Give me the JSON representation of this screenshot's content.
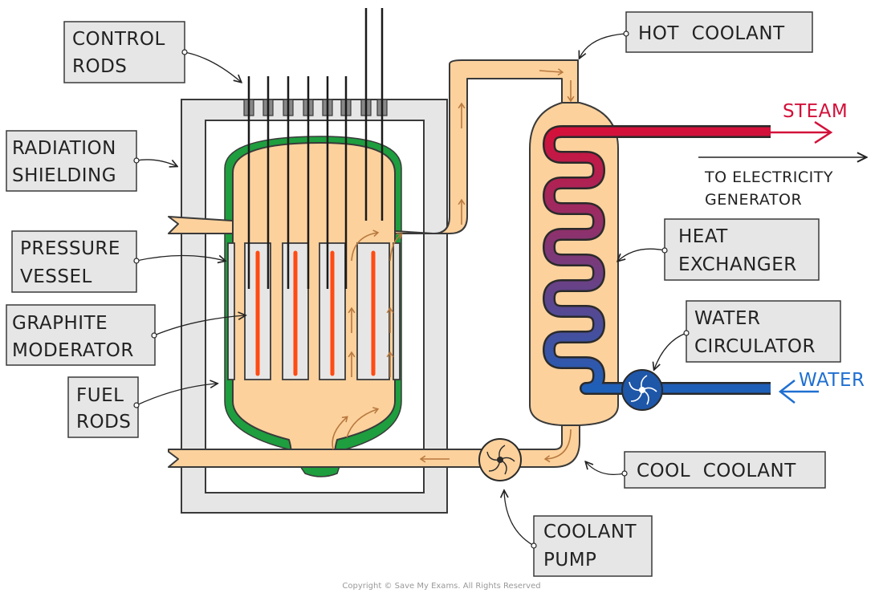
{
  "labels": {
    "control_rods": [
      "CONTROL",
      "RODS"
    ],
    "radiation_shielding": [
      "RADIATION",
      "SHIELDING"
    ],
    "pressure_vessel": [
      "PRESSURE",
      "VESSEL"
    ],
    "graphite_moderator": [
      "GRAPHITE",
      "MODERATOR"
    ],
    "fuel_rods": [
      "FUEL",
      "RODS"
    ],
    "hot_coolant": "HOT  COOLANT",
    "steam": "STEAM",
    "to_electricity_generator": [
      "TO ELECTRICITY",
      "GENERATOR"
    ],
    "heat_exchanger": [
      "HEAT",
      "EXCHANGER"
    ],
    "water_circulator": [
      "WATER",
      "CIRCULATOR"
    ],
    "water": "WATER",
    "cool_coolant": "COOL  COOLANT",
    "coolant_pump": [
      "COOLANT",
      "PUMP"
    ]
  },
  "copyright": "Copyright © Save My Exams. All Rights Reserved",
  "colors": {
    "coolant": "#fcd19c",
    "coolant_outline": "#3a3a3a",
    "shielding": "#e6e6e6",
    "pressure_vessel": "#1e9e3e",
    "moderator": "#e6e6e6",
    "fuel_rod": "#ff4b12",
    "steam": "#d3113a",
    "water": "#1f6fd1",
    "pump_blue": "#1e56a8",
    "flow_arrow": "#b8793f",
    "label_box": "#e6e6e6"
  }
}
